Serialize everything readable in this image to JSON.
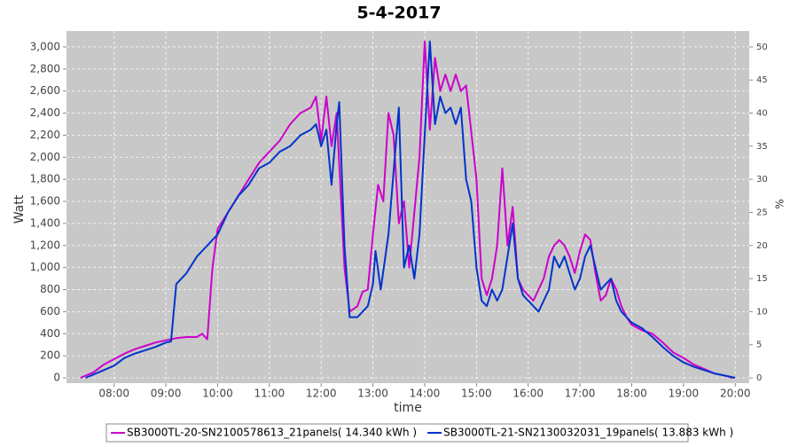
{
  "chart_data": {
    "type": "line",
    "title": "5-4-2017",
    "x_label": "time",
    "y_label": "Watt",
    "y2_label": "%",
    "xlim": [
      7.08,
      20.27
    ],
    "xticks": [
      {
        "value": 8,
        "label": "08:00"
      },
      {
        "value": 9,
        "label": "09:00"
      },
      {
        "value": 10,
        "label": "10:00"
      },
      {
        "value": 11,
        "label": "11:00"
      },
      {
        "value": 12,
        "label": "12:00"
      },
      {
        "value": 13,
        "label": "13:00"
      },
      {
        "value": 14,
        "label": "14:00"
      },
      {
        "value": 15,
        "label": "15:00"
      },
      {
        "value": 16,
        "label": "16:00"
      },
      {
        "value": 17,
        "label": "17:00"
      },
      {
        "value": 18,
        "label": "18:00"
      },
      {
        "value": 19,
        "label": "19:00"
      },
      {
        "value": 20,
        "label": "20:00"
      }
    ],
    "ylim": [
      -48,
      3144
    ],
    "yticks": [
      0,
      200,
      400,
      600,
      800,
      {
        "value": 1000,
        "label": "1,000"
      },
      {
        "value": 1200,
        "label": "1,200"
      },
      {
        "value": 1400,
        "label": "1,400"
      },
      {
        "value": 1600,
        "label": "1,600"
      },
      {
        "value": 1800,
        "label": "1,800"
      },
      {
        "value": 2000,
        "label": "2,000"
      },
      {
        "value": 2200,
        "label": "2,200"
      },
      {
        "value": 2400,
        "label": "2,400"
      },
      {
        "value": 2600,
        "label": "2,600"
      },
      {
        "value": 2800,
        "label": "2,800"
      },
      {
        "value": 3000,
        "label": "3,000"
      }
    ],
    "y2lim": [
      -0.8,
      52.4
    ],
    "y2ticks": [
      0,
      5,
      10,
      15,
      20,
      25,
      30,
      35,
      40,
      45,
      50
    ],
    "grid": true,
    "legend": "bottom",
    "series": [
      {
        "name": "SB3000TL-20-SN2100578613_21panels( 14.340 kWh )",
        "color": "#cc00cc",
        "x": [
          7.35,
          7.6,
          7.8,
          8.0,
          8.2,
          8.4,
          8.6,
          8.8,
          9.0,
          9.2,
          9.4,
          9.6,
          9.7,
          9.8,
          9.9,
          10.0,
          10.2,
          10.4,
          10.6,
          10.8,
          11.0,
          11.2,
          11.4,
          11.6,
          11.8,
          11.9,
          12.0,
          12.1,
          12.2,
          12.3,
          12.45,
          12.55,
          12.7,
          12.8,
          12.9,
          13.0,
          13.1,
          13.2,
          13.3,
          13.4,
          13.5,
          13.6,
          13.7,
          13.8,
          13.9,
          14.0,
          14.1,
          14.2,
          14.3,
          14.4,
          14.5,
          14.6,
          14.7,
          14.8,
          15.0,
          15.1,
          15.2,
          15.3,
          15.4,
          15.5,
          15.6,
          15.7,
          15.8,
          15.9,
          16.0,
          16.1,
          16.2,
          16.3,
          16.4,
          16.5,
          16.6,
          16.7,
          16.8,
          16.9,
          17.0,
          17.1,
          17.2,
          17.3,
          17.4,
          17.5,
          17.6,
          17.7,
          17.8,
          17.9,
          18.0,
          18.2,
          18.4,
          18.6,
          18.8,
          19.0,
          19.2,
          19.4,
          19.6,
          19.8,
          19.95
        ],
        "values": [
          0,
          50,
          120,
          170,
          220,
          260,
          290,
          320,
          340,
          360,
          370,
          370,
          400,
          350,
          1000,
          1350,
          1500,
          1650,
          1800,
          1950,
          2050,
          2150,
          2300,
          2400,
          2450,
          2550,
          2150,
          2550,
          2100,
          2400,
          1000,
          600,
          650,
          780,
          800,
          1300,
          1750,
          1600,
          2400,
          2200,
          1400,
          1600,
          1000,
          1500,
          2000,
          3050,
          2250,
          2900,
          2600,
          2750,
          2600,
          2750,
          2600,
          2650,
          1800,
          900,
          750,
          900,
          1200,
          1900,
          1200,
          1550,
          900,
          800,
          750,
          700,
          800,
          900,
          1100,
          1200,
          1250,
          1200,
          1100,
          950,
          1150,
          1300,
          1250,
          950,
          700,
          750,
          900,
          800,
          650,
          550,
          480,
          430,
          400,
          320,
          230,
          180,
          120,
          80,
          40,
          20,
          0
        ]
      },
      {
        "name": "SB3000TL-21-SN2130032031_19panels( 13.883 kWh )",
        "color": "#0033cc",
        "x": [
          7.45,
          7.7,
          8.0,
          8.2,
          8.4,
          8.6,
          8.8,
          9.0,
          9.1,
          9.2,
          9.4,
          9.6,
          9.8,
          10.0,
          10.2,
          10.4,
          10.6,
          10.8,
          11.0,
          11.2,
          11.4,
          11.6,
          11.8,
          11.9,
          12.0,
          12.1,
          12.2,
          12.3,
          12.35,
          12.45,
          12.55,
          12.7,
          12.9,
          13.0,
          13.05,
          13.15,
          13.3,
          13.5,
          13.6,
          13.7,
          13.8,
          13.9,
          14.0,
          14.1,
          14.2,
          14.3,
          14.4,
          14.5,
          14.6,
          14.7,
          14.8,
          14.9,
          15.0,
          15.1,
          15.2,
          15.3,
          15.4,
          15.5,
          15.6,
          15.7,
          15.8,
          15.9,
          16.0,
          16.1,
          16.2,
          16.3,
          16.4,
          16.5,
          16.6,
          16.7,
          16.8,
          16.9,
          17.0,
          17.1,
          17.2,
          17.3,
          17.4,
          17.5,
          17.6,
          17.7,
          17.8,
          17.9,
          18.0,
          18.2,
          18.4,
          18.6,
          18.8,
          19.0,
          19.2,
          19.4,
          19.6,
          19.8,
          20.0
        ],
        "values": [
          0,
          50,
          110,
          180,
          220,
          250,
          280,
          320,
          330,
          850,
          950,
          1100,
          1200,
          1300,
          1500,
          1650,
          1750,
          1900,
          1950,
          2050,
          2100,
          2200,
          2250,
          2300,
          2100,
          2250,
          1750,
          2300,
          2500,
          1200,
          550,
          550,
          650,
          850,
          1150,
          800,
          1300,
          2450,
          1000,
          1200,
          900,
          1300,
          2200,
          3050,
          2300,
          2550,
          2400,
          2450,
          2300,
          2450,
          1800,
          1600,
          1000,
          700,
          650,
          800,
          700,
          800,
          1100,
          1400,
          900,
          750,
          700,
          650,
          600,
          700,
          800,
          1100,
          1000,
          1100,
          950,
          800,
          900,
          1100,
          1200,
          1000,
          800,
          850,
          900,
          700,
          600,
          550,
          500,
          450,
          370,
          280,
          200,
          140,
          100,
          70,
          40,
          20,
          0
        ]
      }
    ]
  }
}
